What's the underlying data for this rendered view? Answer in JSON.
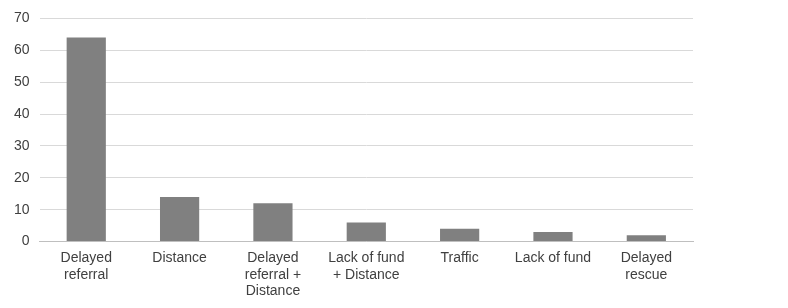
{
  "chart_data": {
    "type": "bar",
    "categories": [
      "Delayed referral",
      "Distance",
      "Delayed referral + Distance",
      "Lack of fund + Distance",
      "Traffic",
      "Lack of fund",
      "Delayed rescue"
    ],
    "values": [
      64,
      14,
      12,
      6,
      4,
      3,
      2
    ],
    "color": "#808080",
    "ylim": [
      0,
      70
    ],
    "yticks": [
      0,
      10,
      20,
      30,
      40,
      50,
      60,
      70
    ],
    "grid": true
  }
}
